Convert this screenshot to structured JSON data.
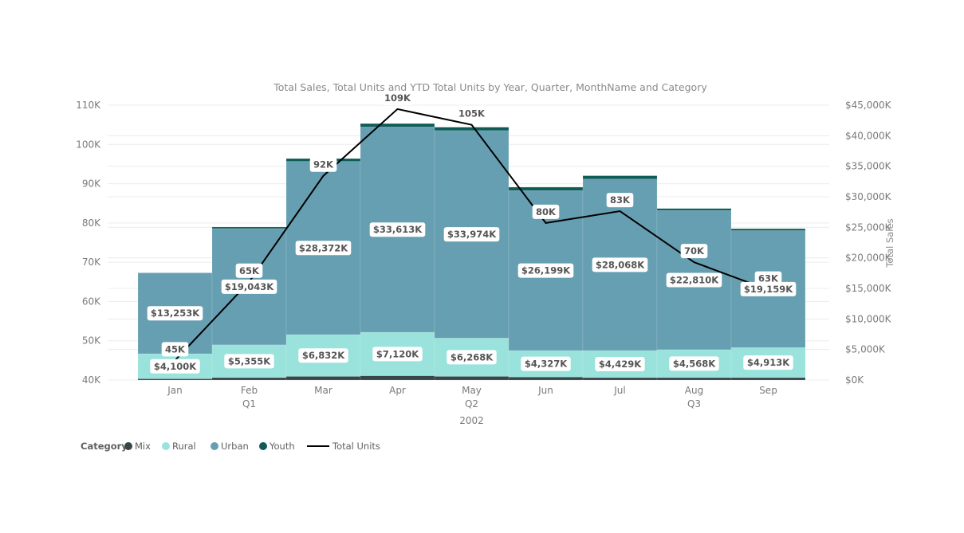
{
  "chart_data": {
    "type": "bar",
    "stacked": true,
    "title": "Total Sales, Total Units and YTD Total Units by Year, Quarter, MonthName and Category",
    "categories": [
      "Jan",
      "Feb",
      "Mar",
      "Apr",
      "May",
      "Jun",
      "Jul",
      "Aug",
      "Sep"
    ],
    "quarters": [
      {
        "label": "Q1",
        "months": [
          "Jan",
          "Feb",
          "Mar"
        ]
      },
      {
        "label": "Q2",
        "months": [
          "Apr",
          "May",
          "Jun"
        ]
      },
      {
        "label": "Q3",
        "months": [
          "Jul",
          "Aug",
          "Sep"
        ]
      }
    ],
    "year": "2002",
    "y_left": {
      "range": [
        40,
        110
      ],
      "ticks": [
        "40K",
        "50K",
        "60K",
        "70K",
        "80K",
        "90K",
        "100K",
        "110K"
      ]
    },
    "y_right": {
      "label": "Total Sales",
      "range": [
        0,
        45000
      ],
      "ticks": [
        "$0K",
        "$5,000K",
        "$10,000K",
        "$15,000K",
        "$20,000K",
        "$25,000K",
        "$30,000K",
        "$35,000K",
        "$40,000K",
        "$45,000K"
      ]
    },
    "series": [
      {
        "name": "Mix",
        "color": "#374649",
        "values": [
          200,
          400,
          600,
          700,
          600,
          500,
          400,
          400,
          400
        ]
      },
      {
        "name": "Rural",
        "color": "#9ae2dc",
        "values": [
          4100,
          5355,
          6832,
          7120,
          6268,
          4327,
          4429,
          4568,
          4913
        ],
        "labels": [
          "$4,100K",
          "$5,355K",
          "$6,832K",
          "$7,120K",
          "$6,268K",
          "$4,327K",
          "$4,429K",
          "$4,568K",
          "$4,913K"
        ]
      },
      {
        "name": "Urban",
        "color": "#679fb2",
        "values": [
          13253,
          19043,
          28372,
          33613,
          33974,
          26199,
          28068,
          22810,
          19159
        ],
        "labels": [
          "$13,253K",
          "$19,043K",
          "$28,372K",
          "$33,613K",
          "$33,974K",
          "$26,199K",
          "$28,068K",
          "$22,810K",
          "$19,159K"
        ]
      },
      {
        "name": "Youth",
        "color": "#0d5c58",
        "values": [
          0,
          250,
          450,
          550,
          550,
          550,
          550,
          300,
          300
        ]
      }
    ],
    "line": {
      "name": "Total Units",
      "color": "#000000",
      "values": [
        45,
        65,
        92,
        109,
        105,
        80,
        83,
        70,
        63
      ],
      "labels": [
        "45K",
        "65K",
        "92K",
        "109K",
        "105K",
        "80K",
        "83K",
        "70K",
        "63K"
      ]
    },
    "legend": {
      "title": "Category",
      "placement": "bottom-left"
    },
    "grid": true
  }
}
